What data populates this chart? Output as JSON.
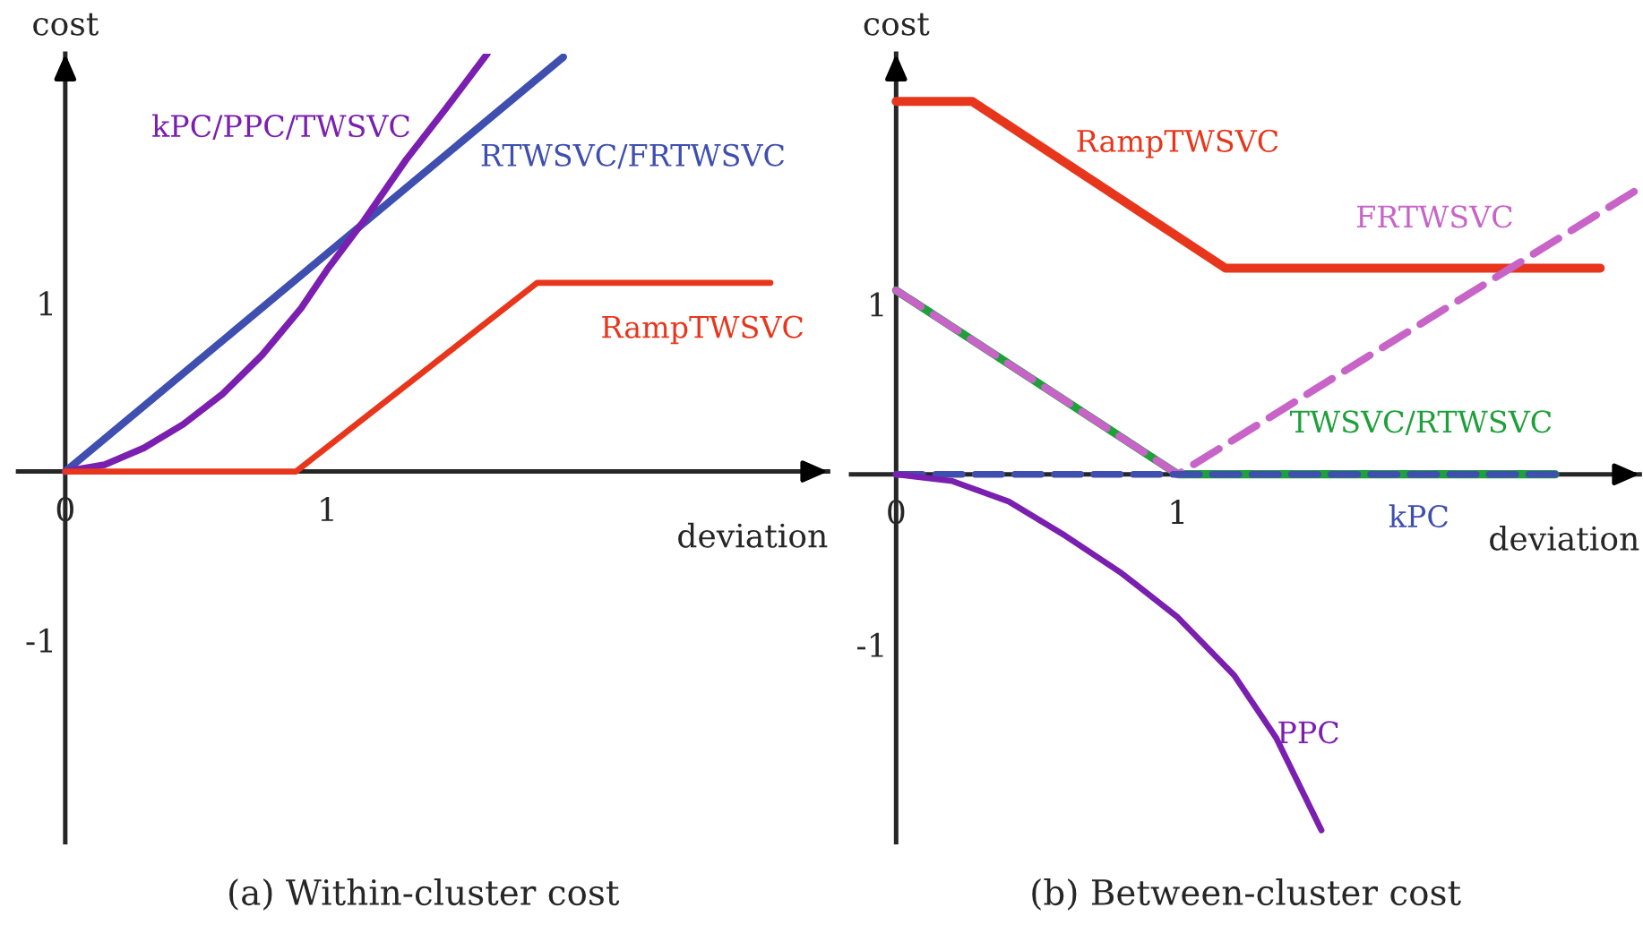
{
  "chart_data": [
    {
      "type": "line",
      "title": "(a) Within-cluster cost",
      "xlabel": "deviation",
      "ylabel": "cost",
      "xlim": [
        -0.18,
        2.91
      ],
      "ylim": [
        -2.2,
        2.48
      ],
      "xticks": [
        {
          "value": 0,
          "label": "0"
        },
        1
      ],
      "yticks": [
        -1,
        1
      ],
      "grid": false,
      "marker": "none",
      "series": [
        {
          "name": "RTWSVC/FRTWSVC",
          "color": "#3f4fb0",
          "line_style": "solid",
          "x": [
            0,
            1.9
          ],
          "values": [
            0,
            2.46
          ]
        },
        {
          "name": "kPC/PPC/TWSVC",
          "color": "#7b1fb0",
          "line_style": "solid",
          "x": [
            0,
            0.15,
            0.3,
            0.45,
            0.6,
            0.75,
            0.9,
            1.0,
            1.14,
            1.3,
            1.45,
            1.61
          ],
          "values": [
            0,
            0.04,
            0.14,
            0.28,
            0.46,
            0.69,
            0.97,
            1.2,
            1.49,
            1.85,
            2.15,
            2.48
          ]
        },
        {
          "name": "RampTWSVC",
          "color": "#e8361c",
          "line_style": "solid",
          "x": [
            0,
            0.88,
            1.8,
            2.69
          ],
          "values": [
            0,
            0,
            1.12,
            1.12
          ]
        }
      ]
    },
    {
      "type": "line",
      "title": "(b) Between-cluster cost",
      "xlabel": "deviation",
      "ylabel": "cost",
      "xlim": [
        -0.16,
        2.64
      ],
      "ylim": [
        -2.16,
        2.47
      ],
      "xticks": [
        {
          "value": 0,
          "label": "0"
        },
        1
      ],
      "yticks": [
        -1,
        1
      ],
      "grid": false,
      "marker": "none",
      "series": [
        {
          "name": "RampTWSVC",
          "color": "#e8361c",
          "line_style": "solid",
          "x": [
            0,
            0.27,
            1.17,
            2.5
          ],
          "values": [
            2.19,
            2.19,
            1.21,
            1.21
          ]
        },
        {
          "name": "TWSVC/RTWSVC",
          "color": "#1ea03a",
          "line_style": "solid",
          "x": [
            0,
            1,
            2.34
          ],
          "values": [
            1.08,
            0,
            0
          ]
        },
        {
          "name": "FRTWSVC",
          "color": "#c864c8",
          "line_style": "dashed",
          "x": [
            0,
            1,
            2.62
          ],
          "values": [
            1.08,
            0,
            1.66
          ]
        },
        {
          "name": "kPC",
          "color": "#3f4fb0",
          "line_style": "dashed",
          "x": [
            0,
            2.34
          ],
          "values": [
            0,
            0
          ]
        },
        {
          "name": "PPC",
          "color": "#7b1fb0",
          "line_style": "solid",
          "x": [
            0,
            0.2,
            0.4,
            0.6,
            0.8,
            1.0,
            1.2,
            1.35,
            1.51
          ],
          "values": [
            0,
            -0.04,
            -0.16,
            -0.36,
            -0.58,
            -0.84,
            -1.18,
            -1.55,
            -2.09
          ]
        }
      ]
    }
  ]
}
